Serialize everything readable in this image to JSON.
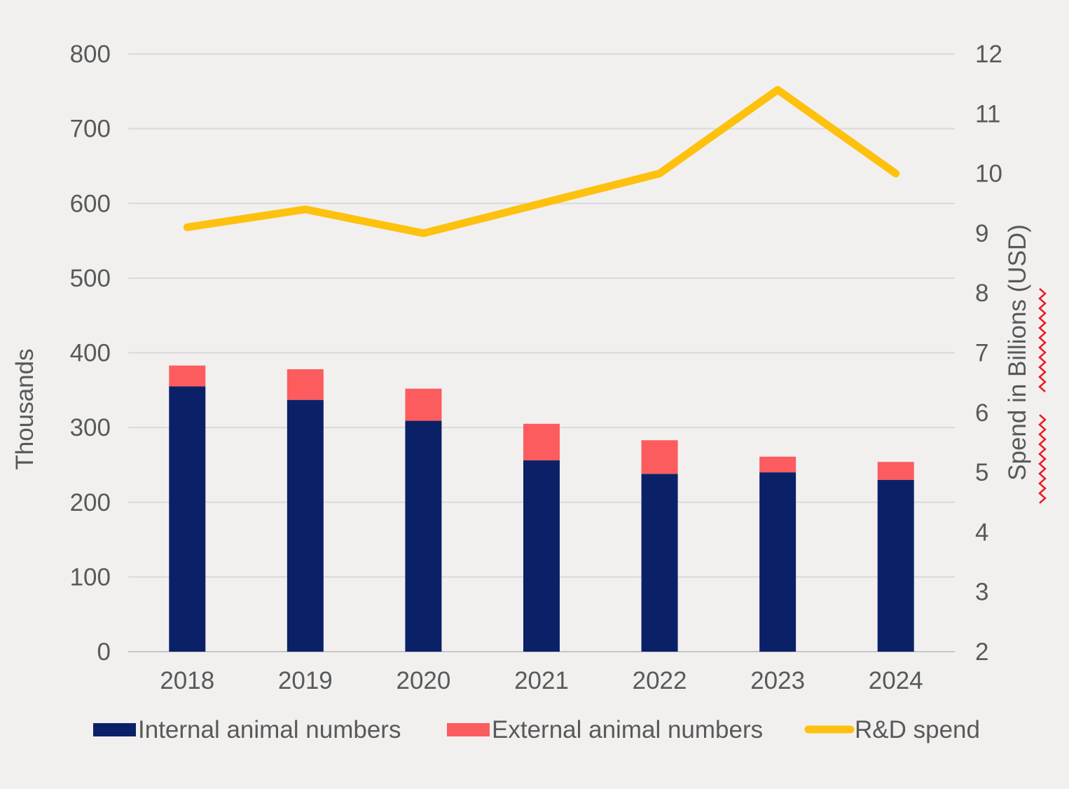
{
  "chart_data": {
    "type": "bar",
    "subtype": "stacked-bar-with-line-overlay",
    "title": "",
    "categories": [
      "2018",
      "2019",
      "2020",
      "2021",
      "2022",
      "2023",
      "2024"
    ],
    "series": [
      {
        "name": "Internal animal numbers",
        "type": "bar",
        "stack": "animals",
        "axis": "left",
        "color": "#0b2167",
        "values": [
          355,
          337,
          309,
          256,
          238,
          240,
          230
        ]
      },
      {
        "name": "External animal numbers",
        "type": "bar",
        "stack": "animals",
        "axis": "left",
        "color": "#fc5c5e",
        "values": [
          28,
          41,
          43,
          49,
          45,
          21,
          24
        ]
      },
      {
        "name": "R&D spend",
        "type": "line",
        "axis": "right",
        "color": "#fdc10e",
        "values": [
          9.1,
          9.4,
          9.0,
          9.5,
          10.0,
          11.4,
          10.0
        ]
      }
    ],
    "left_axis": {
      "label": "Thousands",
      "min": 0,
      "max": 800,
      "step": 100,
      "tick_labels": [
        "0",
        "100",
        "200",
        "300",
        "400",
        "500",
        "600",
        "700",
        "800"
      ]
    },
    "right_axis": {
      "label": "Spend in Billions (USD)",
      "min": 2,
      "max": 12,
      "step": 1,
      "tick_labels": [
        "2",
        "3",
        "4",
        "5",
        "6",
        "7",
        "8",
        "9",
        "10",
        "11",
        "12"
      ]
    },
    "legend": {
      "position": "bottom",
      "entries": [
        "Internal animal numbers",
        "External animal numbers",
        "R&D spend"
      ]
    },
    "grid": true,
    "annotations": {
      "right_axis_label_spellcheck_underline": true
    }
  },
  "style": {
    "background": "#f1f0ef",
    "grid_color": "#d9d9d9",
    "baseline_color": "#c6c6c6",
    "text_color": "#595959",
    "squiggle_color": "#ec1c24",
    "internal_bar_color": "#0b2167",
    "external_bar_color": "#fc5c5e",
    "line_color": "#fdc10e"
  }
}
